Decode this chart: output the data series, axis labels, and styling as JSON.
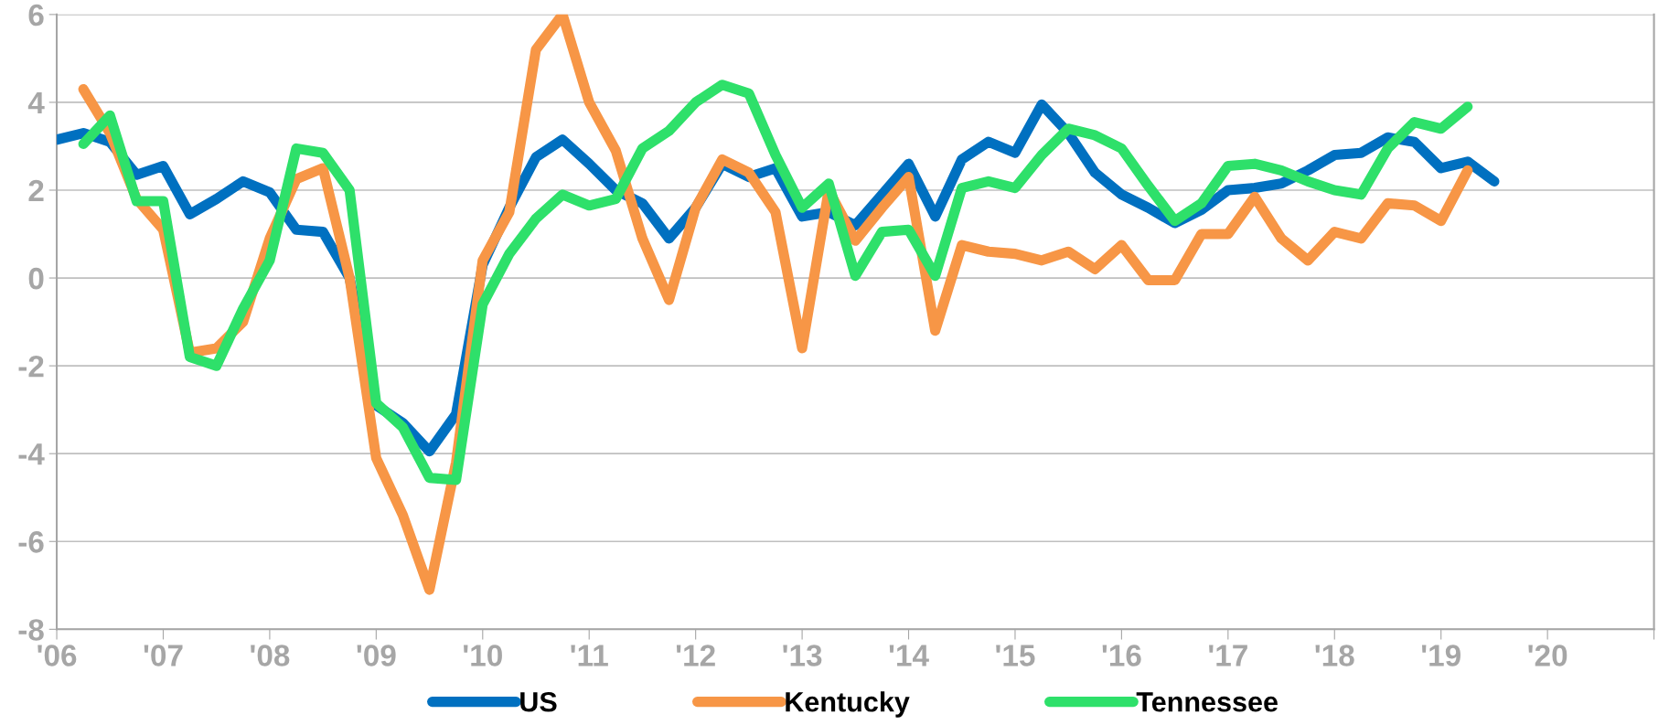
{
  "chart_data": {
    "type": "line",
    "xlim": [
      2006,
      2021
    ],
    "xticks": [
      {
        "value": 2006,
        "label": "'06"
      },
      {
        "value": 2007,
        "label": "'07"
      },
      {
        "value": 2008,
        "label": "'08"
      },
      {
        "value": 2009,
        "label": "'09"
      },
      {
        "value": 2010,
        "label": "'10"
      },
      {
        "value": 2011,
        "label": "'11"
      },
      {
        "value": 2012,
        "label": "'12"
      },
      {
        "value": 2013,
        "label": "'13"
      },
      {
        "value": 2014,
        "label": "'14"
      },
      {
        "value": 2015,
        "label": "'15"
      },
      {
        "value": 2016,
        "label": "'16"
      },
      {
        "value": 2017,
        "label": "'17"
      },
      {
        "value": 2018,
        "label": "'18"
      },
      {
        "value": 2019,
        "label": "'19"
      },
      {
        "value": 2020,
        "label": "'20"
      },
      {
        "value": 2021,
        "label": null
      }
    ],
    "ylim": [
      -8,
      6
    ],
    "yticks": [
      -8,
      -6,
      -4,
      -2,
      0,
      2,
      4,
      6
    ],
    "grid": "y",
    "legend": "bottom",
    "marker": "none",
    "line_style": "solid",
    "series": [
      {
        "name": "US",
        "color": "#0070c0",
        "x": [
          2006,
          2006.25,
          2006.5,
          2006.75,
          2007,
          2007.25,
          2007.5,
          2007.75,
          2008,
          2008.25,
          2008.5,
          2008.75,
          2009,
          2009.25,
          2009.5,
          2009.75,
          2010,
          2010.25,
          2010.5,
          2010.75,
          2011,
          2011.25,
          2011.5,
          2011.75,
          2012,
          2012.25,
          2012.5,
          2012.75,
          2013,
          2013.25,
          2013.5,
          2013.75,
          2014,
          2014.25,
          2014.5,
          2014.75,
          2015,
          2015.25,
          2015.5,
          2015.75,
          2016,
          2016.25,
          2016.5,
          2016.75,
          2017,
          2017.25,
          2017.5,
          2017.75,
          2018,
          2018.25,
          2018.5,
          2018.75,
          2019,
          2019.25,
          2019.5
        ],
        "values": [
          3.15,
          3.3,
          3.1,
          2.35,
          2.55,
          1.45,
          1.8,
          2.2,
          1.95,
          1.1,
          1.05,
          0.0,
          -2.9,
          -3.3,
          -3.95,
          -3.1,
          0.3,
          1.6,
          2.75,
          3.15,
          2.6,
          2.0,
          1.7,
          0.9,
          1.6,
          2.6,
          2.3,
          2.5,
          1.4,
          1.5,
          1.2,
          1.9,
          2.6,
          1.4,
          2.7,
          3.1,
          2.85,
          3.95,
          3.3,
          2.4,
          1.9,
          1.6,
          1.25,
          1.55,
          2.0,
          2.05,
          2.15,
          2.45,
          2.8,
          2.85,
          3.2,
          3.1,
          2.5,
          2.65,
          2.2
        ]
      },
      {
        "name": "Kentucky",
        "color": "#f79646",
        "x": [
          2006.25,
          2006.5,
          2006.75,
          2007,
          2007.25,
          2007.5,
          2007.75,
          2008,
          2008.25,
          2008.5,
          2008.75,
          2009,
          2009.25,
          2009.5,
          2009.75,
          2010,
          2010.25,
          2010.5,
          2010.75,
          2011,
          2011.25,
          2011.5,
          2011.75,
          2012,
          2012.25,
          2012.5,
          2012.75,
          2013,
          2013.25,
          2013.5,
          2013.75,
          2014,
          2014.25,
          2014.5,
          2014.75,
          2015,
          2015.25,
          2015.5,
          2015.75,
          2016,
          2016.25,
          2016.5,
          2016.75,
          2017,
          2017.25,
          2017.5,
          2017.75,
          2018,
          2018.25,
          2018.5,
          2018.75,
          2019,
          2019.25
        ],
        "values": [
          4.3,
          3.3,
          1.8,
          1.1,
          -1.7,
          -1.6,
          -1.0,
          0.9,
          2.25,
          2.5,
          0.0,
          -4.1,
          -5.4,
          -7.1,
          -4.2,
          0.4,
          1.5,
          5.2,
          6.0,
          4.0,
          2.9,
          0.9,
          -0.5,
          1.6,
          2.7,
          2.4,
          1.5,
          -1.6,
          2.0,
          0.85,
          1.6,
          2.3,
          -1.2,
          0.75,
          0.6,
          0.55,
          0.4,
          0.6,
          0.2,
          0.75,
          -0.05,
          -0.05,
          1.0,
          1.0,
          1.85,
          0.9,
          0.4,
          1.05,
          0.9,
          1.7,
          1.65,
          1.3,
          2.45
        ]
      },
      {
        "name": "Tennessee",
        "color": "#2ee06a",
        "x": [
          2006.25,
          2006.5,
          2006.75,
          2007,
          2007.25,
          2007.5,
          2007.75,
          2008,
          2008.25,
          2008.5,
          2008.75,
          2009,
          2009.25,
          2009.5,
          2009.75,
          2010,
          2010.25,
          2010.5,
          2010.75,
          2011,
          2011.25,
          2011.5,
          2011.75,
          2012,
          2012.25,
          2012.5,
          2012.75,
          2013,
          2013.25,
          2013.5,
          2013.75,
          2014,
          2014.25,
          2014.5,
          2014.75,
          2015,
          2015.25,
          2015.5,
          2015.75,
          2016,
          2016.25,
          2016.5,
          2016.75,
          2017,
          2017.25,
          2017.5,
          2017.75,
          2018,
          2018.25,
          2018.5,
          2018.75,
          2019,
          2019.25
        ],
        "values": [
          3.05,
          3.7,
          1.75,
          1.75,
          -1.8,
          -2.0,
          -0.7,
          0.4,
          2.95,
          2.85,
          2.0,
          -2.85,
          -3.4,
          -4.55,
          -4.6,
          -0.6,
          0.55,
          1.35,
          1.9,
          1.65,
          1.8,
          2.95,
          3.35,
          4.0,
          4.4,
          4.2,
          2.8,
          1.6,
          2.15,
          0.05,
          1.05,
          1.1,
          0.05,
          2.05,
          2.2,
          2.05,
          2.8,
          3.4,
          3.25,
          2.95,
          2.1,
          1.3,
          1.7,
          2.55,
          2.6,
          2.45,
          2.2,
          2.0,
          1.9,
          2.95,
          3.55,
          3.4,
          3.9
        ]
      }
    ]
  }
}
